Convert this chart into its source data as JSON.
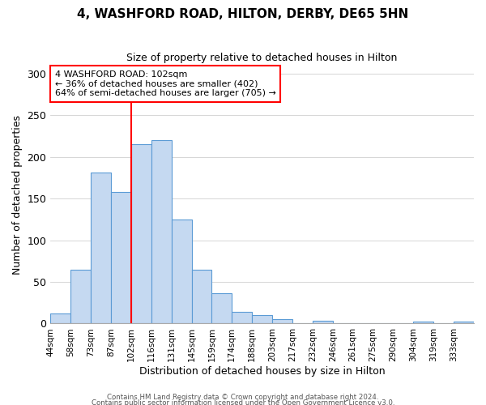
{
  "title": "4, WASHFORD ROAD, HILTON, DERBY, DE65 5HN",
  "subtitle": "Size of property relative to detached houses in Hilton",
  "xlabel": "Distribution of detached houses by size in Hilton",
  "ylabel": "Number of detached properties",
  "bin_labels": [
    "44sqm",
    "58sqm",
    "73sqm",
    "87sqm",
    "102sqm",
    "116sqm",
    "131sqm",
    "145sqm",
    "159sqm",
    "174sqm",
    "188sqm",
    "203sqm",
    "217sqm",
    "232sqm",
    "246sqm",
    "261sqm",
    "275sqm",
    "290sqm",
    "304sqm",
    "319sqm",
    "333sqm"
  ],
  "bar_values": [
    12,
    65,
    181,
    158,
    215,
    220,
    125,
    65,
    36,
    14,
    10,
    5,
    0,
    3,
    0,
    0,
    0,
    0,
    2,
    0,
    2
  ],
  "bar_color": "#c5d9f1",
  "bar_edge_color": "#5b9bd5",
  "vline_x_index": 4,
  "vline_color": "#ff0000",
  "annotation_title": "4 WASHFORD ROAD: 102sqm",
  "annotation_line1": "← 36% of detached houses are smaller (402)",
  "annotation_line2": "64% of semi-detached houses are larger (705) →",
  "annotation_box_color": "#ff0000",
  "ylim": [
    0,
    310
  ],
  "yticks": [
    0,
    50,
    100,
    150,
    200,
    250,
    300
  ],
  "footer1": "Contains HM Land Registry data © Crown copyright and database right 2024.",
  "footer2": "Contains public sector information licensed under the Open Government Licence v3.0.",
  "background_color": "#ffffff",
  "grid_color": "#d0d0d0"
}
